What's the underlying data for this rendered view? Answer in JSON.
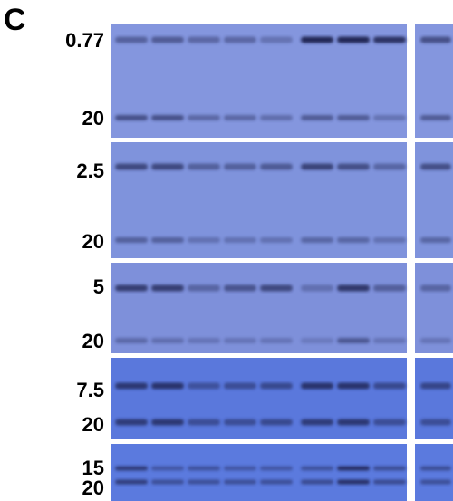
{
  "panel_label": "C",
  "blots": [
    {
      "labels": [
        "0.77",
        "20"
      ]
    },
    {
      "labels": [
        "2.5",
        "20"
      ]
    },
    {
      "labels": [
        "5",
        "20"
      ]
    },
    {
      "labels": [
        "7.5",
        "20"
      ]
    },
    {
      "labels": [
        "15",
        "20"
      ]
    }
  ]
}
